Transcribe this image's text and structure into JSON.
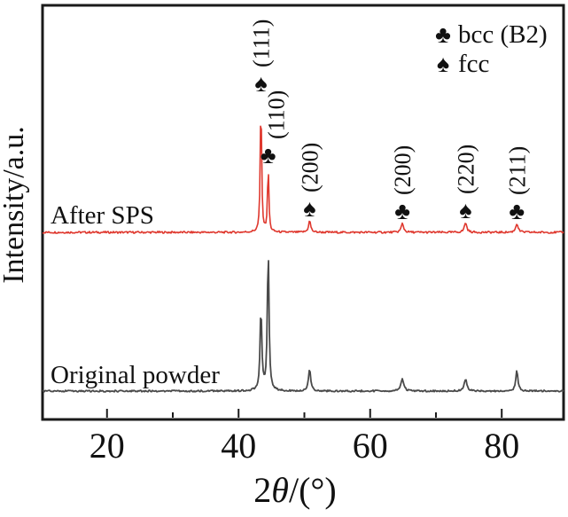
{
  "chart_data": {
    "type": "line",
    "title": "",
    "xlabel": "2θ/(°)",
    "ylabel": "Intensity/a.u.",
    "xlim": [
      10.2,
      89.4
    ],
    "x_major_ticks": [
      20,
      40,
      60,
      80
    ],
    "x_minor_ticks": [
      30,
      50,
      70
    ],
    "y_axis": "arbitrary units, no ticks",
    "grid": false,
    "legend_position": "top-right-inside",
    "series": [
      {
        "name": "After SPS",
        "color": "#df382e",
        "peaks": [
          {
            "two_theta": 43.4,
            "intensity": 154,
            "width_deg": 0.12,
            "hkl": "(111)",
            "phase": "fcc"
          },
          {
            "two_theta": 44.5,
            "intensity": 73,
            "width_deg": 0.12,
            "hkl": "(110)",
            "phase": "bcc"
          },
          {
            "two_theta": 50.8,
            "intensity": 13,
            "width_deg": 0.2,
            "hkl": "(200)",
            "phase": "fcc"
          },
          {
            "two_theta": 64.9,
            "intensity": 10,
            "width_deg": 0.22,
            "hkl": "(200)",
            "phase": "bcc"
          },
          {
            "two_theta": 74.5,
            "intensity": 11,
            "width_deg": 0.22,
            "hkl": "(220)",
            "phase": "fcc"
          },
          {
            "two_theta": 82.3,
            "intensity": 10,
            "width_deg": 0.22,
            "hkl": "(211)",
            "phase": "bcc"
          }
        ]
      },
      {
        "name": "Original powder",
        "color": "#4a4a4a",
        "peaks": [
          {
            "two_theta": 43.4,
            "intensity": 92,
            "width_deg": 0.16,
            "hkl": "(111)",
            "phase": "fcc"
          },
          {
            "two_theta": 44.5,
            "intensity": 160,
            "width_deg": 0.15,
            "hkl": "(110)",
            "phase": "bcc"
          },
          {
            "two_theta": 50.8,
            "intensity": 25,
            "width_deg": 0.2,
            "hkl": "(200)",
            "phase": "fcc"
          },
          {
            "two_theta": 64.9,
            "intensity": 14,
            "width_deg": 0.25,
            "hkl": "(200)",
            "phase": "bcc"
          },
          {
            "two_theta": 74.5,
            "intensity": 13,
            "width_deg": 0.25,
            "hkl": "(220)",
            "phase": "fcc"
          },
          {
            "two_theta": 82.3,
            "intensity": 23,
            "width_deg": 0.2,
            "hkl": "(211)",
            "phase": "bcc"
          }
        ]
      }
    ],
    "peak_annotations": [
      {
        "two_theta": 43.4,
        "symbol": "spade",
        "label": "(111)",
        "phase": "fcc"
      },
      {
        "two_theta": 44.5,
        "symbol": "club",
        "label": "(110)",
        "phase": "bcc"
      },
      {
        "two_theta": 50.8,
        "symbol": "spade",
        "label": "(200)",
        "phase": "fcc"
      },
      {
        "two_theta": 64.9,
        "symbol": "club",
        "label": "(200)",
        "phase": "bcc"
      },
      {
        "two_theta": 74.5,
        "symbol": "spade",
        "label": "(220)",
        "phase": "fcc"
      },
      {
        "two_theta": 82.3,
        "symbol": "club",
        "label": "(211)",
        "phase": "bcc"
      }
    ],
    "legend": [
      {
        "symbol": "club",
        "label": "bcc (B2)"
      },
      {
        "symbol": "spade",
        "label": "fcc"
      }
    ],
    "colors": {
      "after_sps": "#df382e",
      "original_powder": "#4a4a4a",
      "frame": "#1a1a1a"
    }
  }
}
